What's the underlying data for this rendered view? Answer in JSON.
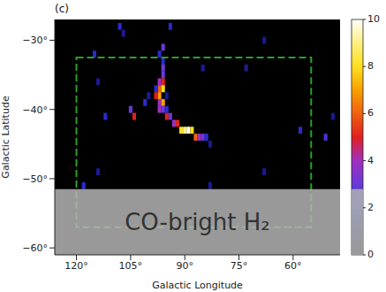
{
  "chart_data": {
    "type": "heatmap",
    "panel_label": "(c)",
    "x_label": "Galactic Longitude",
    "y_label": "Galactic Latitude",
    "xlim": [
      126,
      47
    ],
    "xticks": [
      {
        "value": 120,
        "label": "120°"
      },
      {
        "value": 105,
        "label": "105°"
      },
      {
        "value": 90,
        "label": "90°"
      },
      {
        "value": 75,
        "label": "75°"
      },
      {
        "value": 60,
        "label": "60°"
      }
    ],
    "ylim": [
      -61,
      -27
    ],
    "yticks": [
      {
        "value": -30,
        "label": "−30°"
      },
      {
        "value": -40,
        "label": "−40°"
      },
      {
        "value": -50,
        "label": "−50°"
      },
      {
        "value": -60,
        "label": "−60°"
      }
    ],
    "cells": [
      [
        96,
        -31,
        3
      ],
      [
        97,
        -32,
        2
      ],
      [
        96,
        -33,
        2
      ],
      [
        96,
        -34,
        3
      ],
      [
        96,
        -35,
        3
      ],
      [
        97,
        -36,
        4
      ],
      [
        96,
        -36,
        5
      ],
      [
        97,
        -37,
        6
      ],
      [
        96,
        -37,
        8
      ],
      [
        97,
        -38,
        7
      ],
      [
        98,
        -38,
        5
      ],
      [
        97,
        -39,
        4
      ],
      [
        96,
        -39,
        7
      ],
      [
        97,
        -40,
        4
      ],
      [
        96,
        -40,
        3
      ],
      [
        95,
        -41,
        5
      ],
      [
        94,
        -41,
        3
      ],
      [
        93,
        -42,
        4
      ],
      [
        92,
        -42,
        5
      ],
      [
        91,
        -43,
        8
      ],
      [
        90,
        -43,
        9
      ],
      [
        89,
        -43,
        10
      ],
      [
        88,
        -43,
        8
      ],
      [
        87,
        -44,
        6
      ],
      [
        86,
        -44,
        4
      ],
      [
        85,
        -44,
        3
      ],
      [
        84,
        -44,
        2
      ],
      [
        83,
        -45,
        1.5
      ],
      [
        95,
        -40,
        2
      ],
      [
        98,
        -37,
        2
      ],
      [
        95,
        -38,
        1.5
      ],
      [
        104,
        -41,
        5
      ],
      [
        105,
        -40,
        3
      ],
      [
        101,
        -39,
        2
      ],
      [
        100,
        -38,
        1.5
      ],
      [
        108,
        -28,
        2
      ],
      [
        107,
        -29,
        1.5
      ],
      [
        115,
        -32,
        2
      ],
      [
        114,
        -36,
        1.5
      ],
      [
        112,
        -41,
        2
      ],
      [
        58,
        -43,
        2
      ],
      [
        51,
        -44,
        2.5
      ],
      [
        118,
        -51,
        2
      ],
      [
        114,
        -49,
        1.5
      ],
      [
        68,
        -49,
        1.5
      ],
      [
        83,
        -51,
        1.5
      ],
      [
        73,
        -34,
        1.5
      ],
      [
        49,
        -41,
        1.5
      ],
      [
        68,
        -30,
        1.5
      ],
      [
        94,
        -28,
        2
      ],
      [
        85,
        -34,
        1.5
      ]
    ],
    "colorbar": {
      "lim": [
        0,
        10
      ],
      "ticks": [
        0,
        2,
        4,
        6,
        8,
        10
      ],
      "colorscale": [
        [
          0,
          "#000000"
        ],
        [
          1,
          "#0a0a5a"
        ],
        [
          2,
          "#2a2ad0"
        ],
        [
          3,
          "#6a3ad8"
        ],
        [
          4,
          "#a030c0"
        ],
        [
          5,
          "#e02020"
        ],
        [
          6,
          "#f06010"
        ],
        [
          7,
          "#f8a000"
        ],
        [
          8,
          "#ffe020"
        ],
        [
          9,
          "#fff080"
        ],
        [
          10,
          "#ffffff"
        ]
      ]
    },
    "region": {
      "lon": [
        120,
        55
      ],
      "lat": [
        -32.5,
        -57
      ],
      "color": "#2ca02c",
      "line_style": "dashed"
    },
    "mask": {
      "label": "CO-bright H₂",
      "lat": [
        -51.5,
        -61
      ]
    }
  }
}
